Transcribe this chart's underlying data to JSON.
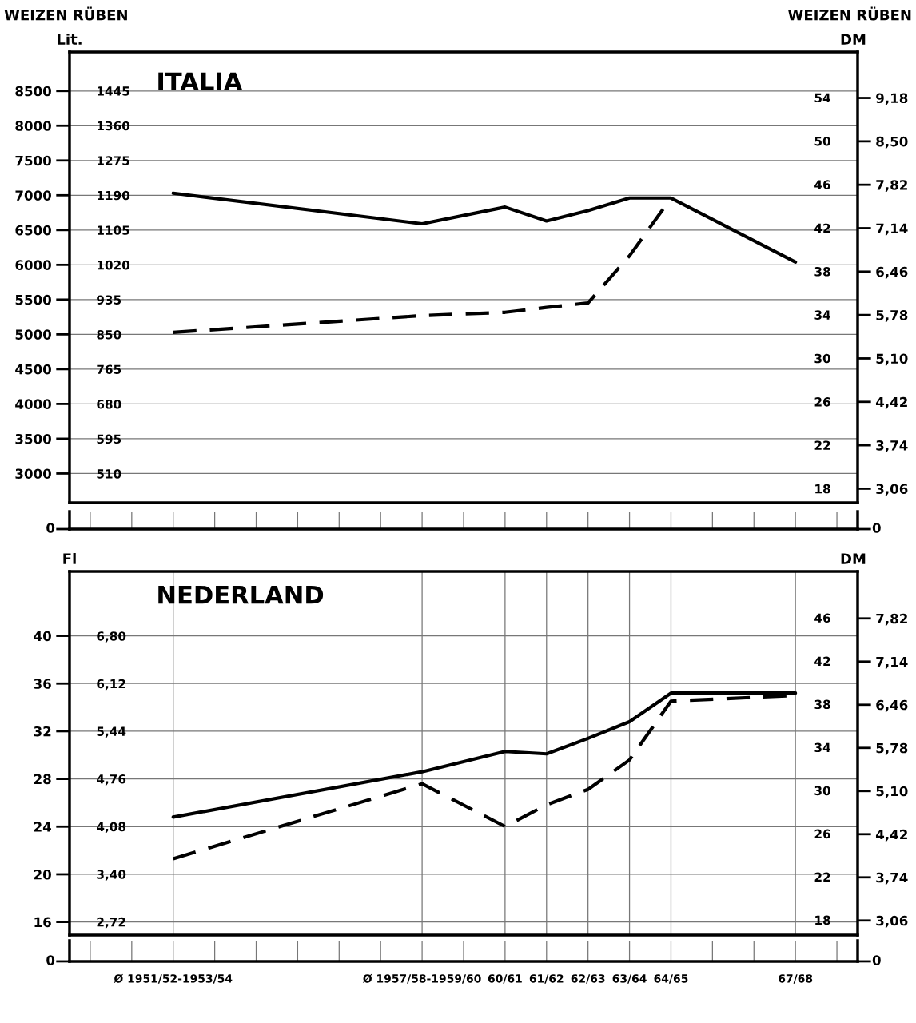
{
  "chart_data": [
    {
      "type": "line",
      "title": "ITALIA",
      "ylabel": "Lit.",
      "y2label": "DM",
      "annotations": [
        "WEIZEN RÜBEN",
        "WEIZEN RÜBEN",
        "0",
        "0"
      ],
      "categories": [
        null,
        null,
        null,
        null,
        null,
        null,
        null,
        null,
        null,
        null,
        null,
        null,
        null,
        null,
        null,
        null,
        null,
        null,
        null
      ],
      "tick_labels": "y",
      "series": [
        {
          "color": "#000000",
          "line_style": "solid",
          "values": [
            null,
            null,
            7030,
            null,
            null,
            null,
            null,
            null,
            6590,
            null,
            6830,
            6630,
            6780,
            6960,
            6960,
            null,
            null,
            6040,
            null
          ]
        }
      ],
      "ylim": [
        2580,
        9060
      ],
      "yticks": [
        3000,
        3500,
        4000,
        4500,
        5000,
        5500,
        6000,
        6500,
        7000,
        7500,
        8000,
        8500
      ],
      "y2lim": [
        16.7,
        58.2
      ],
      "y2ticks": [
        18,
        22,
        26,
        30,
        34,
        38,
        42,
        46,
        50,
        54
      ],
      "grid": true,
      "marker": "none"
    },
    {
      "type": "line",
      "categories": [
        null,
        null,
        null,
        null,
        null,
        null,
        null,
        null,
        null,
        null,
        null,
        null,
        null,
        null,
        null,
        null,
        null,
        null,
        null
      ],
      "tick_labels": "y",
      "series": [
        {
          "color": "#000000",
          "line_style": "dashed",
          "values": [
            null,
            null,
            855,
            null,
            null,
            null,
            null,
            null,
            896,
            null,
            904,
            916,
            927,
            1042,
            1183,
            null,
            null,
            null,
            null
          ]
        }
      ],
      "ylim": [
        439,
        1540
      ],
      "yticks": [
        510,
        595,
        680,
        765,
        850,
        935,
        1020,
        1105,
        1190,
        1275,
        1360,
        1445
      ],
      "y2lim": [
        2.84,
        9.9
      ],
      "y2ticks": [
        {
          "value": 3.06,
          "label": "3,06"
        },
        {
          "value": 3.74,
          "label": "3,74"
        },
        {
          "value": 4.42,
          "label": "4,42"
        },
        {
          "value": 5.1,
          "label": "5,10"
        },
        {
          "value": 5.78,
          "label": "5,78"
        },
        {
          "value": 6.46,
          "label": "6,46"
        },
        {
          "value": 7.14,
          "label": "7,14"
        },
        {
          "value": 7.82,
          "label": "7,82"
        },
        {
          "value": 8.5,
          "label": "8,50"
        },
        {
          "value": 9.18,
          "label": "9,18"
        }
      ],
      "marker": "none"
    },
    {
      "type": "line",
      "title": "NEDERLAND",
      "ylabel": "Fl",
      "y2label": "DM",
      "annotations": [
        "0",
        "0"
      ],
      "categories": [
        null,
        null,
        "Ø 1951/52-1953/54",
        null,
        null,
        null,
        null,
        null,
        "Ø 1957/58-1959/60",
        null,
        "60/61",
        "61/62",
        "62/63",
        "63/64",
        "64/65",
        null,
        null,
        "67/68",
        null
      ],
      "series": [
        {
          "color": "#000000",
          "line_style": "solid",
          "values": [
            null,
            null,
            24.8,
            null,
            null,
            null,
            null,
            null,
            28.6,
            null,
            30.3,
            30.1,
            31.4,
            32.8,
            35.2,
            null,
            null,
            35.2,
            null
          ]
        }
      ],
      "ylim": [
        14.9,
        45.4
      ],
      "yticks": [
        16,
        20,
        24,
        28,
        32,
        36,
        40
      ],
      "y2lim": [
        16.6,
        50.3
      ],
      "y2ticks": [
        18,
        22,
        26,
        30,
        34,
        38,
        42,
        46
      ],
      "grid": true,
      "marker": "none"
    },
    {
      "type": "line",
      "categories": [
        null,
        null,
        null,
        null,
        null,
        null,
        null,
        null,
        null,
        null,
        null,
        null,
        null,
        null,
        null,
        null,
        null,
        null,
        null
      ],
      "tick_labels": "y",
      "series": [
        {
          "color": "#000000",
          "line_style": "dashed",
          "values": [
            null,
            null,
            3.62,
            null,
            null,
            null,
            null,
            null,
            4.69,
            null,
            4.08,
            4.39,
            4.61,
            5.03,
            5.87,
            null,
            null,
            5.95,
            null
          ]
        }
      ],
      "ylim": [
        2.53,
        7.72
      ],
      "yticks": [
        {
          "value": 2.72,
          "label": "2,72"
        },
        {
          "value": 3.4,
          "label": "3,40"
        },
        {
          "value": 4.08,
          "label": "4,08"
        },
        {
          "value": 4.76,
          "label": "4,76"
        },
        {
          "value": 5.44,
          "label": "5,44"
        },
        {
          "value": 6.12,
          "label": "6,12"
        },
        {
          "value": 6.8,
          "label": "6,80"
        }
      ],
      "y2lim": [
        2.83,
        8.56
      ],
      "y2ticks": [
        {
          "value": 3.06,
          "label": "3,06"
        },
        {
          "value": 3.74,
          "label": "3,74"
        },
        {
          "value": 4.42,
          "label": "4,42"
        },
        {
          "value": 5.1,
          "label": "5,10"
        },
        {
          "value": 5.78,
          "label": "5,78"
        },
        {
          "value": 6.46,
          "label": "6,46"
        },
        {
          "value": 7.14,
          "label": "7,14"
        },
        {
          "value": 7.82,
          "label": "7,82"
        }
      ],
      "marker": "none"
    }
  ]
}
